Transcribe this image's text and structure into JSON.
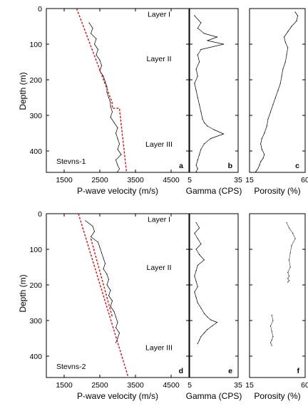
{
  "figure": {
    "ylabel": "Depth (m)",
    "xlabels": {
      "velocity": "P-wave velocity (m/s)",
      "gamma": "Gamma (CPS)",
      "porosity": "Porosity (%)"
    },
    "colors": {
      "trace": "#000000",
      "trend": "#cc2020"
    }
  },
  "chart_data": [
    {
      "type": "line",
      "panel": "a",
      "well": "Stevns-1",
      "well_label": "Stevns-1",
      "xlabel": "P-wave velocity (m/s)",
      "ylabel": "Depth (m)",
      "xlim": [
        1000,
        5000
      ],
      "ylim": [
        0,
        460
      ],
      "y_inverted": true,
      "xticks": [
        1500,
        2500,
        3500,
        4500
      ],
      "yticks": [
        0,
        100,
        200,
        300,
        400
      ],
      "layers": [
        {
          "label": "Layer I",
          "depth": 15
        },
        {
          "label": "Layer II",
          "depth": 140
        },
        {
          "label": "Layer III",
          "depth": 380
        }
      ],
      "series": [
        {
          "role": "measured",
          "x": [
            2200,
            2300,
            2250,
            2400,
            2350,
            2450,
            2400,
            2500,
            2550,
            2500,
            2600,
            2650,
            2700,
            2700,
            2750,
            2800,
            2800,
            2850,
            2800,
            2900,
            3000,
            2950,
            3000,
            3050,
            3000,
            3100,
            2950,
            3000,
            3050,
            3000
          ],
          "y": [
            40,
            55,
            70,
            85,
            100,
            115,
            130,
            145,
            160,
            175,
            190,
            205,
            220,
            235,
            250,
            265,
            275,
            290,
            305,
            320,
            335,
            350,
            365,
            380,
            395,
            410,
            425,
            440,
            450,
            458
          ]
        },
        {
          "role": "trend",
          "x": [
            1850,
            2850,
            2850,
            3050,
            3250
          ],
          "y": [
            0,
            265,
            280,
            280,
            460
          ]
        }
      ]
    },
    {
      "type": "line",
      "panel": "b",
      "xlabel": "Gamma (CPS)",
      "xlim": [
        5,
        35
      ],
      "ylim": [
        0,
        460
      ],
      "y_inverted": true,
      "xticks": [
        5,
        35
      ],
      "series": [
        {
          "x": [
            8,
            12,
            10,
            14,
            22,
            16,
            26,
            12,
            10,
            11,
            9,
            10,
            8,
            9,
            10,
            11,
            12,
            13,
            14,
            16,
            20,
            26,
            18,
            14,
            12,
            11,
            10,
            9,
            10,
            9
          ],
          "y": [
            20,
            40,
            55,
            70,
            80,
            90,
            100,
            115,
            130,
            150,
            170,
            190,
            210,
            230,
            250,
            270,
            290,
            310,
            320,
            330,
            340,
            352,
            365,
            380,
            395,
            410,
            425,
            440,
            450,
            458
          ]
        }
      ]
    },
    {
      "type": "line",
      "panel": "c",
      "xlabel": "Porosity (%)",
      "xlim": [
        15,
        60
      ],
      "ylim": [
        0,
        460
      ],
      "y_inverted": true,
      "xticks": [
        15,
        60
      ],
      "series": [
        {
          "x": [
            52,
            54,
            53,
            49,
            46,
            43,
            44,
            46,
            45,
            44,
            42,
            41,
            40,
            38,
            36,
            34,
            32,
            30,
            29,
            27,
            25,
            24,
            25,
            27,
            26,
            24,
            23,
            22,
            21,
            20
          ],
          "y": [
            10,
            20,
            35,
            50,
            65,
            80,
            95,
            110,
            130,
            150,
            170,
            190,
            210,
            230,
            250,
            270,
            290,
            310,
            330,
            350,
            365,
            380,
            395,
            410,
            420,
            430,
            440,
            448,
            454,
            458
          ]
        }
      ]
    },
    {
      "type": "line",
      "panel": "d",
      "well": "Stevns-2",
      "well_label": "Stevns-2",
      "xlabel": "P-wave velocity (m/s)",
      "ylabel": "Depth (m)",
      "xlim": [
        1000,
        5000
      ],
      "ylim": [
        0,
        460
      ],
      "y_inverted": true,
      "xticks": [
        1500,
        2500,
        3500,
        4500
      ],
      "yticks": [
        0,
        100,
        200,
        300,
        400
      ],
      "layers": [
        {
          "label": "Layer I",
          "depth": 15
        },
        {
          "label": "Layer II",
          "depth": 150
        },
        {
          "label": "Layer III",
          "depth": 375
        }
      ],
      "series": [
        {
          "role": "measured",
          "x": [
            2100,
            2300,
            2350,
            2250,
            2450,
            2500,
            2550,
            2600,
            2650,
            2600,
            2700,
            2750,
            2700,
            2800,
            2750,
            2850,
            2800,
            2900,
            2950,
            3000,
            2950,
            3050,
            3000,
            2950
          ],
          "y": [
            20,
            35,
            50,
            65,
            80,
            95,
            110,
            125,
            140,
            155,
            170,
            185,
            200,
            215,
            230,
            245,
            260,
            275,
            290,
            305,
            320,
            335,
            350,
            362
          ]
        },
        {
          "role": "trend",
          "x": [
            1900,
            3300
          ],
          "y": [
            0,
            460
          ]
        },
        {
          "role": "trend",
          "x": [
            2250,
            2850
          ],
          "y": [
            70,
            290
          ]
        }
      ]
    },
    {
      "type": "line",
      "panel": "e",
      "xlabel": "Gamma (CPS)",
      "xlim": [
        5,
        35
      ],
      "ylim": [
        0,
        460
      ],
      "y_inverted": true,
      "xticks": [
        5,
        35
      ],
      "series": [
        {
          "x": [
            9,
            11,
            8,
            10,
            12,
            9,
            11,
            14,
            10,
            9,
            8,
            9,
            10,
            8,
            9,
            10,
            12,
            14,
            16,
            18,
            22,
            19,
            16,
            14,
            12,
            11,
            10
          ],
          "y": [
            25,
            40,
            55,
            70,
            85,
            100,
            115,
            130,
            145,
            160,
            175,
            190,
            205,
            220,
            235,
            250,
            265,
            280,
            290,
            298,
            305,
            315,
            325,
            335,
            345,
            355,
            365
          ]
        }
      ]
    },
    {
      "type": "line",
      "panel": "f",
      "xlabel": "Porosity (%)",
      "xlim": [
        15,
        60
      ],
      "ylim": [
        0,
        460
      ],
      "y_inverted": true,
      "xticks": [
        15,
        60
      ],
      "series": [
        {
          "x": [
            45,
            47,
            50,
            52,
            49,
            48,
            47,
            48,
            46,
            47,
            46,
            47,
            46
          ],
          "y": [
            25,
            40,
            55,
            70,
            90,
            110,
            130,
            150,
            165,
            175,
            182,
            188,
            192
          ]
        },
        {
          "x": [
            33,
            34,
            32,
            33,
            34,
            33,
            32,
            33
          ],
          "y": [
            285,
            300,
            315,
            330,
            345,
            355,
            362,
            370
          ]
        }
      ]
    }
  ]
}
